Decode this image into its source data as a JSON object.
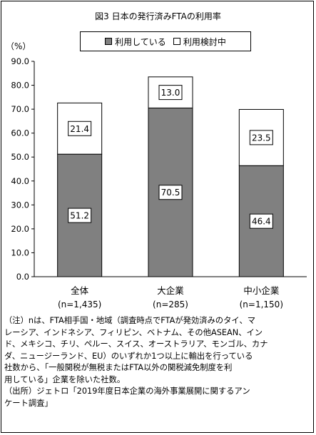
{
  "title": "図3 日本の発行済みFTAの利用率",
  "unit_label": "（%）",
  "legend": [
    {
      "label": "利用している",
      "color": "#808080"
    },
    {
      "label": "利用検討中",
      "color": "#ffffff"
    }
  ],
  "chart_data": {
    "type": "bar",
    "stacked": true,
    "categories": [
      "全体",
      "大企業",
      "中小企業"
    ],
    "category_counts": [
      "(n=1,435)",
      "(n=285)",
      "(n=1,150)"
    ],
    "series": [
      {
        "name": "利用している",
        "values": [
          51.2,
          70.5,
          46.4
        ],
        "color": "#808080"
      },
      {
        "name": "利用検討中",
        "values": [
          21.4,
          13.0,
          23.5
        ],
        "color": "#ffffff"
      }
    ],
    "ylim": [
      0,
      90
    ],
    "yticks": [
      "0.0",
      "10.0",
      "20.0",
      "30.0",
      "40.0",
      "50.0",
      "60.0",
      "70.0",
      "80.0",
      "90.0"
    ],
    "data_labels": [
      [
        "51.2",
        "21.4"
      ],
      [
        "70.5",
        "13.0"
      ],
      [
        "46.4",
        "23.5"
      ]
    ],
    "grid": false
  },
  "note_lines": [
    "（注）nは、FTA相手国・地域（調査時点でFTAが発効済みのタイ、マ",
    "レーシア、インドネシア、フィリピン、ベトナム、その他ASEAN、イン",
    "ド、メキシコ、チリ、ペルー、スイス、オーストラリア、モンゴル、カナ",
    "ダ、ニュージーランド、EU）のいずれか1つ以上に輸出を行っている",
    "社数から、「一般関税が無税またはFTA以外の関税減免制度を利",
    "用している」企業を除いた社数。"
  ],
  "source_lines": [
    "（出所）ジェトロ「2019年度日本企業の海外事業展開に関するアン",
    "ケート調査」"
  ]
}
